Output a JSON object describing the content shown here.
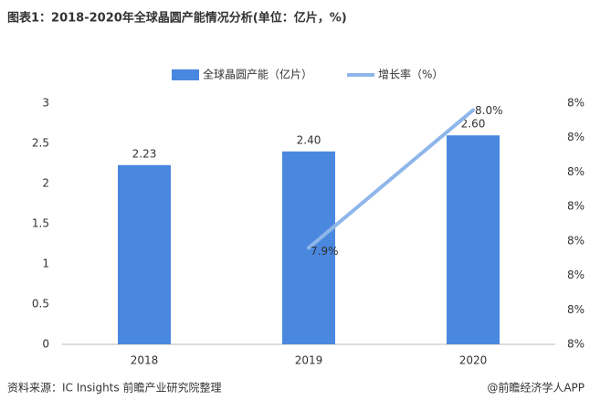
{
  "chart_data": {
    "type": "bar_line",
    "title": "图表1：2018-2020年全球晶圆产能情况分析(单位：亿片，%)",
    "source": "资料来源：IC Insights 前瞻产业研究院整理",
    "watermark": "@前瞻经济学人APP",
    "categories": [
      "2018",
      "2019",
      "2020"
    ],
    "series": [
      {
        "name": "全球晶圆产能（亿片）",
        "type": "bar",
        "color": "#4a88e0",
        "values": [
          2.23,
          2.4,
          2.6
        ],
        "value_labels": [
          "2.23",
          "2.40",
          "2.60"
        ]
      },
      {
        "name": "增长率（%）",
        "type": "line",
        "axis": "y2",
        "color": "#8fb6ea",
        "values": [
          null,
          7.9,
          8.0
        ],
        "value_labels": [
          null,
          "7.9%",
          "8.0%"
        ]
      }
    ],
    "ylim": [
      0,
      3
    ],
    "yticks": [
      0,
      0.5,
      1,
      1.5,
      2,
      2.5,
      3
    ],
    "y2lim": [
      7.83,
      8.005
    ],
    "y2ticks": [
      {
        "value": 7.83,
        "label": "8%"
      },
      {
        "value": 7.855,
        "label": "8%"
      },
      {
        "value": 7.88,
        "label": "8%"
      },
      {
        "value": 7.905,
        "label": "8%"
      },
      {
        "value": 7.93,
        "label": "8%"
      },
      {
        "value": 7.955,
        "label": "8%"
      },
      {
        "value": 7.98,
        "label": "8%"
      },
      {
        "value": 8.005,
        "label": "8%"
      }
    ],
    "grid": false
  }
}
